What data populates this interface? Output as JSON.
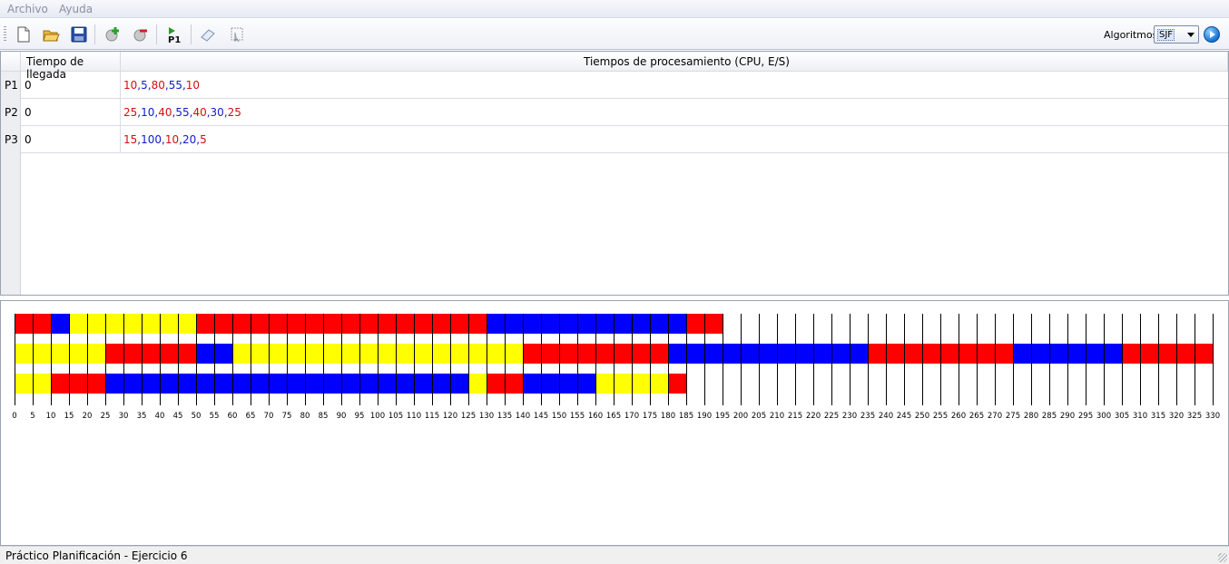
{
  "menu": {
    "items": [
      "Archivo",
      "Ayuda"
    ]
  },
  "toolbar": {
    "buttons": [
      {
        "icon": "new-file-icon"
      },
      {
        "icon": "open-folder-icon"
      },
      {
        "icon": "save-disk-icon"
      },
      {
        "icon": "add-process-icon"
      },
      {
        "icon": "remove-process-icon"
      },
      {
        "icon": "process-p1-icon",
        "label": "P1"
      },
      {
        "icon": "eraser-icon"
      },
      {
        "icon": "cursor-tool-icon"
      }
    ],
    "algorithm_label": "Algoritmos:",
    "algorithm_value": "SJF"
  },
  "table": {
    "headers": [
      "Tiempo de llegada",
      "Tiempos de procesamiento (CPU, E/S)"
    ],
    "rows": [
      {
        "name": "P1",
        "arrival": "0",
        "times": [
          "10",
          "5",
          "80",
          "55",
          "10"
        ]
      },
      {
        "name": "P2",
        "arrival": "0",
        "times": [
          "25",
          "10",
          "40",
          "55",
          "40",
          "30",
          "25"
        ]
      },
      {
        "name": "P3",
        "arrival": "0",
        "times": [
          "15",
          "100",
          "10",
          "20",
          "5"
        ]
      }
    ],
    "colors": {
      "cpu": "#d01010",
      "io": "#1020c8"
    }
  },
  "chart_data": {
    "type": "gantt",
    "time_step": 5,
    "x_ticks_max": 330,
    "colors": {
      "cpu": "#ff0000",
      "io": "#0000ff",
      "ready": "#ffff00"
    },
    "rows": [
      {
        "process": "P1",
        "segments": [
          {
            "start": 0,
            "end": 10,
            "state": "cpu"
          },
          {
            "start": 10,
            "end": 15,
            "state": "io"
          },
          {
            "start": 15,
            "end": 50,
            "state": "ready"
          },
          {
            "start": 50,
            "end": 130,
            "state": "cpu"
          },
          {
            "start": 130,
            "end": 185,
            "state": "io"
          },
          {
            "start": 185,
            "end": 195,
            "state": "cpu"
          }
        ]
      },
      {
        "process": "P2",
        "segments": [
          {
            "start": 0,
            "end": 25,
            "state": "ready"
          },
          {
            "start": 25,
            "end": 50,
            "state": "cpu"
          },
          {
            "start": 50,
            "end": 60,
            "state": "io"
          },
          {
            "start": 60,
            "end": 140,
            "state": "ready"
          },
          {
            "start": 140,
            "end": 180,
            "state": "cpu"
          },
          {
            "start": 180,
            "end": 235,
            "state": "io"
          },
          {
            "start": 235,
            "end": 275,
            "state": "cpu"
          },
          {
            "start": 275,
            "end": 305,
            "state": "io"
          },
          {
            "start": 305,
            "end": 330,
            "state": "cpu"
          }
        ]
      },
      {
        "process": "P3",
        "segments": [
          {
            "start": 0,
            "end": 10,
            "state": "ready"
          },
          {
            "start": 10,
            "end": 25,
            "state": "cpu"
          },
          {
            "start": 25,
            "end": 125,
            "state": "io"
          },
          {
            "start": 125,
            "end": 130,
            "state": "ready"
          },
          {
            "start": 130,
            "end": 140,
            "state": "cpu"
          },
          {
            "start": 140,
            "end": 160,
            "state": "io"
          },
          {
            "start": 160,
            "end": 180,
            "state": "ready"
          },
          {
            "start": 180,
            "end": 185,
            "state": "cpu"
          }
        ]
      }
    ]
  },
  "status": {
    "text": "Práctico Planificación - Ejercicio 6"
  }
}
